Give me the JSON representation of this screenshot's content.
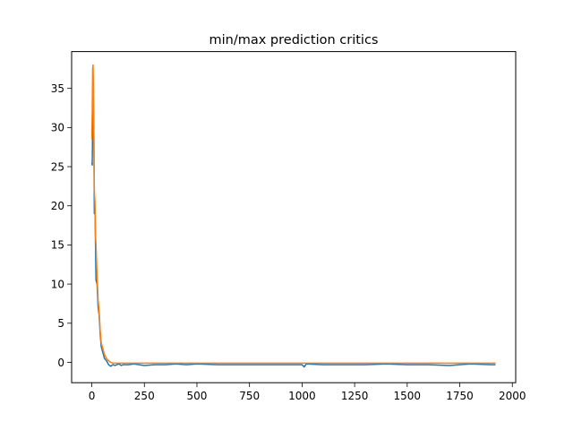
{
  "chart_data": {
    "type": "line",
    "title": "min/max prediction critics",
    "xlabel": "",
    "ylabel": "",
    "xlim": [
      -96,
      2016
    ],
    "ylim": [
      -2.6,
      39.7
    ],
    "xticks": [
      0,
      250,
      500,
      750,
      1000,
      1250,
      1500,
      1750,
      2000
    ],
    "yticks": [
      0,
      5,
      10,
      15,
      20,
      25,
      30,
      35
    ],
    "grid": false,
    "legend": "none",
    "series": [
      {
        "color": "#1f77b4",
        "x": [
          0,
          2,
          4,
          6,
          8,
          10,
          12,
          15,
          18,
          20,
          25,
          30,
          35,
          40,
          45,
          50,
          55,
          60,
          70,
          80,
          90,
          100,
          110,
          120,
          130,
          140,
          150,
          175,
          200,
          250,
          300,
          350,
          400,
          450,
          500,
          600,
          700,
          800,
          900,
          1000,
          1010,
          1020,
          1100,
          1200,
          1300,
          1400,
          1500,
          1600,
          1700,
          1800,
          1900,
          1920
        ],
        "y": [
          25.5,
          25.2,
          30.5,
          36.5,
          32.0,
          28.0,
          19.0,
          20.0,
          14.0,
          10.5,
          10.0,
          7.0,
          6.0,
          3.5,
          2.0,
          1.5,
          1.0,
          0.5,
          0.2,
          -0.3,
          -0.5,
          -0.3,
          -0.4,
          -0.3,
          -0.2,
          -0.4,
          -0.3,
          -0.3,
          -0.2,
          -0.4,
          -0.3,
          -0.3,
          -0.2,
          -0.3,
          -0.2,
          -0.3,
          -0.3,
          -0.3,
          -0.3,
          -0.3,
          -0.6,
          -0.2,
          -0.3,
          -0.3,
          -0.3,
          -0.2,
          -0.3,
          -0.3,
          -0.4,
          -0.2,
          -0.3,
          -0.3
        ]
      },
      {
        "color": "#ff7f0e",
        "x": [
          0,
          2,
          4,
          6,
          8,
          10,
          12,
          15,
          18,
          20,
          25,
          30,
          35,
          40,
          45,
          50,
          55,
          60,
          70,
          80,
          90,
          100,
          110,
          120,
          130,
          140,
          150,
          175,
          200,
          250,
          300,
          350,
          400,
          450,
          500,
          600,
          700,
          800,
          900,
          1000,
          1100,
          1200,
          1300,
          1400,
          1500,
          1600,
          1700,
          1800,
          1900,
          1920
        ],
        "y": [
          28.5,
          32.0,
          37.5,
          38.0,
          35.0,
          29.0,
          22.0,
          20.5,
          16.0,
          15.0,
          11.0,
          8.0,
          6.5,
          4.0,
          2.5,
          2.0,
          1.5,
          1.0,
          0.5,
          0.2,
          0.0,
          -0.1,
          -0.1,
          -0.1,
          -0.1,
          -0.1,
          -0.1,
          -0.1,
          -0.1,
          -0.1,
          -0.1,
          -0.1,
          -0.1,
          -0.1,
          -0.1,
          -0.1,
          -0.1,
          -0.1,
          -0.1,
          -0.1,
          -0.1,
          -0.1,
          -0.1,
          -0.1,
          -0.1,
          -0.1,
          -0.1,
          -0.1,
          -0.1,
          -0.1
        ]
      }
    ]
  }
}
